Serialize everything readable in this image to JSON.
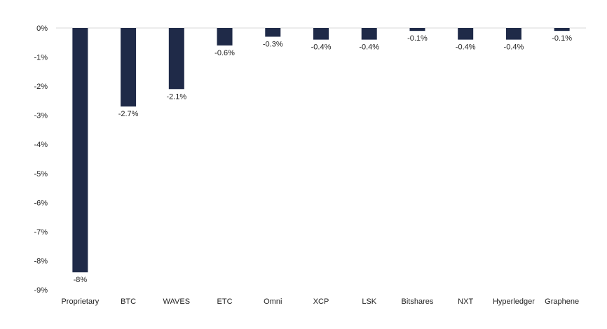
{
  "chart_data": {
    "type": "bar",
    "categories": [
      "Proprietary",
      "BTC",
      "WAVES",
      "ETC",
      "Omni",
      "XCP",
      "LSK",
      "Bitshares",
      "NXT",
      "Hyperledger",
      "Graphene"
    ],
    "values": [
      -8.4,
      -2.7,
      -2.1,
      -0.6,
      -0.3,
      -0.4,
      -0.4,
      -0.1,
      -0.4,
      -0.4,
      -0.1
    ],
    "data_labels": [
      "-8%",
      "-2.7%",
      "-2.1%",
      "-0.6%",
      "-0.3%",
      "-0.4%",
      "-0.4%",
      "-0.1%",
      "-0.4%",
      "-0.4%",
      "-0.1%"
    ],
    "ylim": [
      -9,
      0
    ],
    "y_ticks": [
      0,
      -1,
      -2,
      -3,
      -4,
      -5,
      -6,
      -7,
      -8,
      -9
    ],
    "y_tick_labels": [
      "0%",
      "-1%",
      "-2%",
      "-3%",
      "-4%",
      "-5%",
      "-6%",
      "-7%",
      "-8%",
      "-9%"
    ],
    "title": "",
    "xlabel": "",
    "ylabel": "",
    "grid": false,
    "legend": "none",
    "bar_color": "#1f2a48",
    "zero_line_color": "#d9d9d9"
  }
}
